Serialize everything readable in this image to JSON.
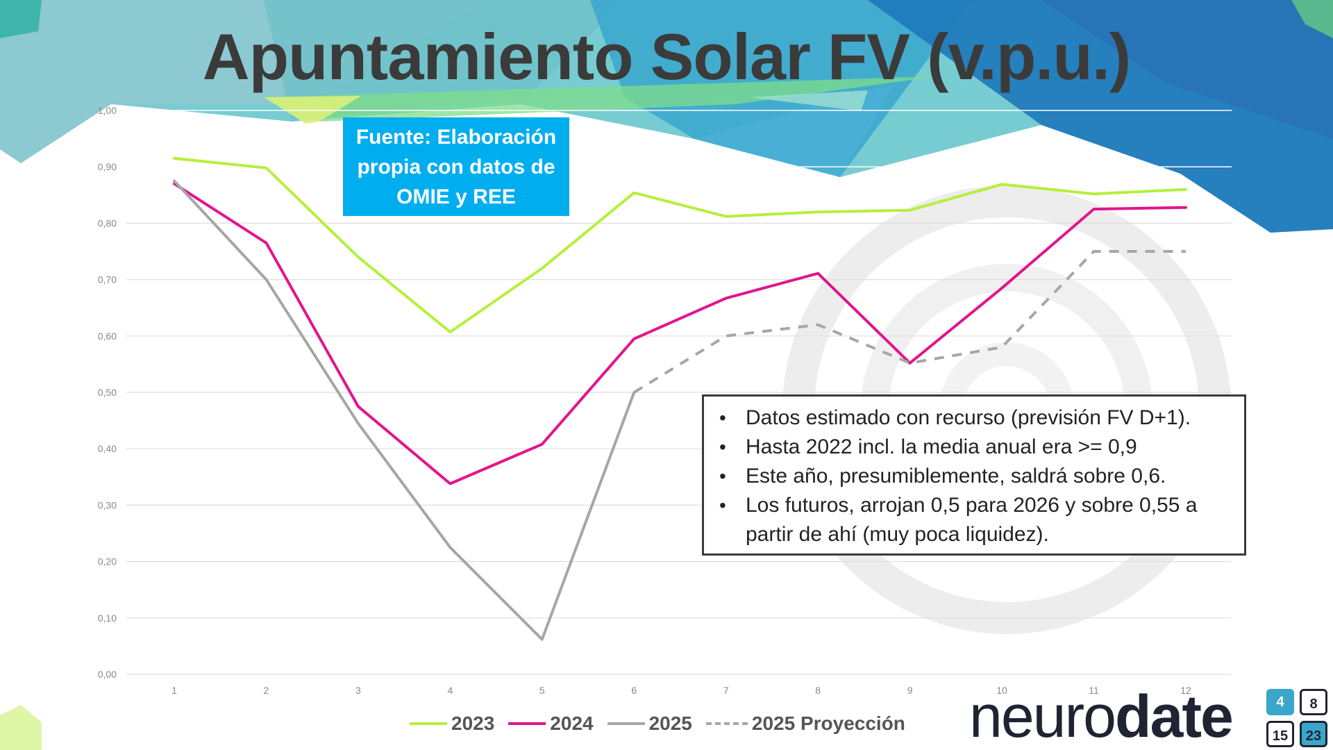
{
  "title": "Apuntamiento Solar FV (v.p.u.)",
  "source_note": "Fuente: Elaboración propia con datos de OMIE y REE",
  "notes": [
    "Datos estimado con recurso (previsión FV D+1).",
    "Hasta 2022 incl. la media anual era >= 0,9",
    "Este año, presumiblemente, saldrá sobre 0,6.",
    "Los futuros, arrojan 0,5 para 2026 y sobre 0,55 a partir de ahí (muy poca liquidez)."
  ],
  "logo": {
    "text_light": "neuro",
    "text_bold": "date",
    "calendar_numbers": [
      "4",
      "8",
      "15",
      "23"
    ]
  },
  "chart_data": {
    "type": "line",
    "title": "Apuntamiento Solar FV (v.p.u.)",
    "xlabel": "",
    "ylabel": "",
    "x": [
      1,
      2,
      3,
      4,
      5,
      6,
      7,
      8,
      9,
      10,
      11,
      12
    ],
    "x_tick_labels": [
      "1",
      "2",
      "3",
      "4",
      "5",
      "6",
      "7",
      "8",
      "9",
      "10",
      "11",
      "12"
    ],
    "y_tick_labels": [
      "0,00",
      "0,10",
      "0,20",
      "0,30",
      "0,40",
      "0,50",
      "0,60",
      "0,70",
      "0,80",
      "0,90",
      "1,00"
    ],
    "ylim": [
      0,
      1
    ],
    "grid": "horizontal",
    "legend_position": "bottom",
    "series": [
      {
        "name": "2023",
        "color": "#b5f03c",
        "dash": false,
        "points": [
          [
            1,
            0.915
          ],
          [
            2,
            0.898
          ],
          [
            3,
            0.74
          ],
          [
            4,
            0.607
          ],
          [
            5,
            0.72
          ],
          [
            6,
            0.854
          ],
          [
            7,
            0.812
          ],
          [
            8,
            0.82
          ],
          [
            9,
            0.823
          ],
          [
            10,
            0.869
          ],
          [
            11,
            0.852
          ],
          [
            12,
            0.86
          ]
        ]
      },
      {
        "name": "2024",
        "color": "#e2148d",
        "dash": false,
        "points": [
          [
            1,
            0.87
          ],
          [
            2,
            0.765
          ],
          [
            3,
            0.475
          ],
          [
            4,
            0.338
          ],
          [
            5,
            0.408
          ],
          [
            6,
            0.595
          ],
          [
            7,
            0.667
          ],
          [
            8,
            0.711
          ],
          [
            9,
            0.552
          ],
          [
            10,
            0.685
          ],
          [
            11,
            0.825
          ],
          [
            12,
            0.828
          ]
        ]
      },
      {
        "name": "2025",
        "color": "#a6a6a6",
        "dash": false,
        "points": [
          [
            1,
            0.875
          ],
          [
            2,
            0.7
          ],
          [
            3,
            0.445
          ],
          [
            4,
            0.225
          ],
          [
            5,
            0.062
          ],
          [
            6,
            0.5
          ]
        ]
      },
      {
        "name": "2025 Proyección",
        "color": "#a6a6a6",
        "dash": true,
        "points": [
          [
            6,
            0.5
          ],
          [
            7,
            0.6
          ],
          [
            8,
            0.62
          ],
          [
            9,
            0.552
          ],
          [
            10,
            0.58
          ],
          [
            11,
            0.75
          ],
          [
            12,
            0.75
          ]
        ]
      }
    ]
  },
  "colors": {
    "title": "#3b3b3b",
    "source_box": "#00aeef",
    "grid": "#dedede",
    "tick_text": "#888888"
  }
}
